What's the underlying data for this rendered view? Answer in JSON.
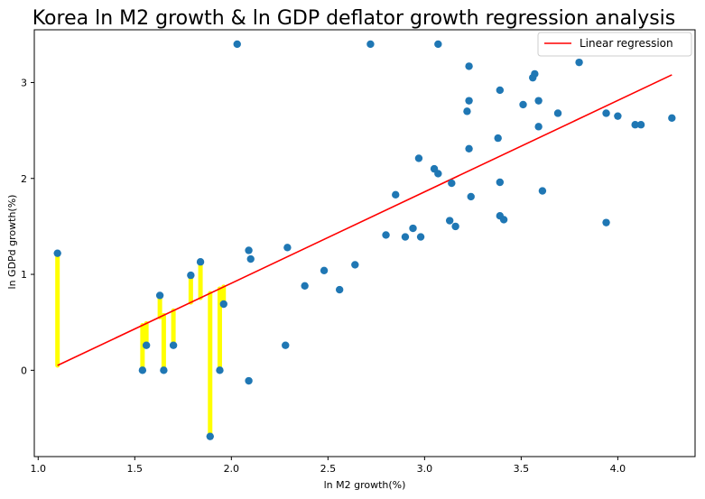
{
  "chart_data": {
    "type": "scatter",
    "title": "Korea ln M2 growth & ln GDP deflator growth regression analysis",
    "xlabel": "ln M2 growth(%)",
    "ylabel": "ln GDPd growth(%)",
    "xlim": [
      0.98,
      4.4
    ],
    "ylim": [
      -0.9,
      3.55
    ],
    "xticks": [
      1.0,
      1.5,
      2.0,
      2.5,
      3.0,
      3.5,
      4.0
    ],
    "xtick_labels": [
      "1.0",
      "1.5",
      "2.0",
      "2.5",
      "3.0",
      "3.5",
      "4.0"
    ],
    "yticks": [
      0,
      1,
      2,
      3
    ],
    "ytick_labels": [
      "0",
      "1",
      "2",
      "3"
    ],
    "grid": false,
    "legend_position": "top-right",
    "colors": {
      "points": "#1f77b4",
      "regression": "#ff0000",
      "residuals": "#ffff00"
    },
    "series": [
      {
        "type": "scatter",
        "points": [
          [
            1.1,
            1.22
          ],
          [
            1.54,
            0.0
          ],
          [
            1.56,
            0.26
          ],
          [
            1.63,
            0.78
          ],
          [
            1.65,
            0.0
          ],
          [
            1.7,
            0.26
          ],
          [
            1.79,
            0.99
          ],
          [
            1.84,
            1.13
          ],
          [
            1.89,
            -0.69
          ],
          [
            1.94,
            0.0
          ],
          [
            1.96,
            0.69
          ],
          [
            2.03,
            3.4
          ],
          [
            2.09,
            1.25
          ],
          [
            2.1,
            1.16
          ],
          [
            2.09,
            -0.11
          ],
          [
            2.29,
            1.28
          ],
          [
            2.28,
            0.26
          ],
          [
            2.38,
            0.88
          ],
          [
            2.48,
            1.04
          ],
          [
            2.56,
            0.84
          ],
          [
            2.64,
            1.1
          ],
          [
            2.72,
            3.4
          ],
          [
            2.8,
            1.41
          ],
          [
            2.85,
            1.83
          ],
          [
            2.9,
            1.39
          ],
          [
            2.94,
            1.48
          ],
          [
            2.97,
            2.21
          ],
          [
            2.98,
            1.39
          ],
          [
            3.05,
            2.1
          ],
          [
            3.07,
            2.05
          ],
          [
            3.07,
            3.4
          ],
          [
            3.13,
            1.56
          ],
          [
            3.14,
            1.95
          ],
          [
            3.16,
            1.5
          ],
          [
            3.22,
            2.7
          ],
          [
            3.23,
            2.81
          ],
          [
            3.23,
            3.17
          ],
          [
            3.23,
            2.31
          ],
          [
            3.24,
            1.81
          ],
          [
            3.38,
            2.42
          ],
          [
            3.39,
            2.92
          ],
          [
            3.39,
            1.61
          ],
          [
            3.39,
            1.96
          ],
          [
            3.41,
            1.57
          ],
          [
            3.51,
            2.77
          ],
          [
            3.56,
            3.05
          ],
          [
            3.57,
            3.09
          ],
          [
            3.59,
            2.54
          ],
          [
            3.59,
            2.81
          ],
          [
            3.61,
            1.87
          ],
          [
            3.69,
            2.68
          ],
          [
            3.8,
            3.21
          ],
          [
            3.94,
            2.68
          ],
          [
            3.94,
            1.54
          ],
          [
            4.0,
            2.65
          ],
          [
            4.09,
            2.56
          ],
          [
            4.12,
            2.56
          ],
          [
            4.28,
            2.63
          ]
        ]
      },
      {
        "name": "Linear regression",
        "type": "line",
        "points": [
          [
            1.1,
            0.05
          ],
          [
            4.28,
            3.08
          ]
        ]
      },
      {
        "type": "residuals",
        "points": [
          [
            1.1,
            1.22
          ],
          [
            1.54,
            0.0
          ],
          [
            1.56,
            0.26
          ],
          [
            1.63,
            0.78
          ],
          [
            1.65,
            0.0
          ],
          [
            1.7,
            0.26
          ],
          [
            1.79,
            0.99
          ],
          [
            1.84,
            1.13
          ],
          [
            1.89,
            -0.69
          ],
          [
            1.94,
            0.0
          ],
          [
            1.96,
            0.69
          ]
        ]
      }
    ]
  }
}
